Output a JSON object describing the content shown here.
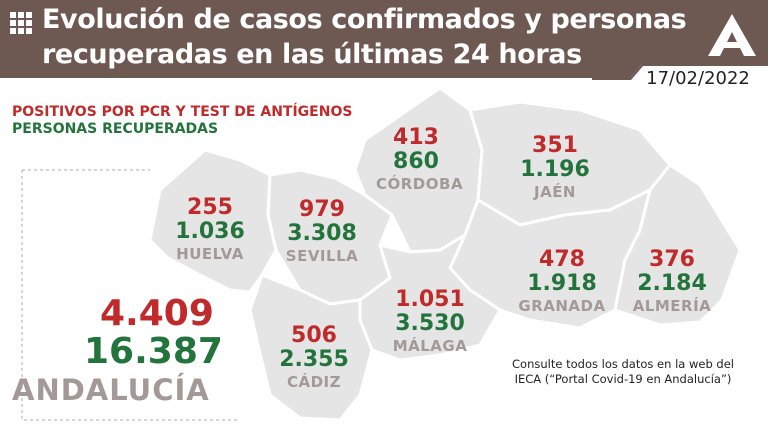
{
  "header": {
    "title_line1": "Evolución de casos confirmados y personas",
    "title_line2": "recuperadas en las últimas 24 horas",
    "date": "17/02/2022",
    "icon": "grid-icon",
    "logo": "junta-andalucia-logo"
  },
  "legend": {
    "positives": "POSITIVOS POR PCR Y TEST DE ANTÍGENOS",
    "recovered": "PERSONAS RECUPERADAS"
  },
  "colors": {
    "header_bg": "#6e5852",
    "positive": "#c12a2a",
    "recovered": "#23733c",
    "province_name": "#a39a97",
    "map_fill": "#e6e6e6"
  },
  "provinces": [
    {
      "name": "HUELVA",
      "positives": "255",
      "recovered": "1.036"
    },
    {
      "name": "SEVILLA",
      "positives": "979",
      "recovered": "3.308"
    },
    {
      "name": "CÓRDOBA",
      "positives": "413",
      "recovered": "860"
    },
    {
      "name": "JAÉN",
      "positives": "351",
      "recovered": "1.196"
    },
    {
      "name": "GRANADA",
      "positives": "478",
      "recovered": "1.918"
    },
    {
      "name": "ALMERÍA",
      "positives": "376",
      "recovered": "2.184"
    },
    {
      "name": "MÁLAGA",
      "positives": "1.051",
      "recovered": "3.530"
    },
    {
      "name": "CÁDIZ",
      "positives": "506",
      "recovered": "2.355"
    }
  ],
  "total": {
    "name": "ANDALUCÍA",
    "positives": "4.409",
    "recovered": "16.387"
  },
  "footer": {
    "line1": "Consulte todos los datos en la web del",
    "line2": "IECA (“Portal Covid-19 en Andalucía”)"
  }
}
